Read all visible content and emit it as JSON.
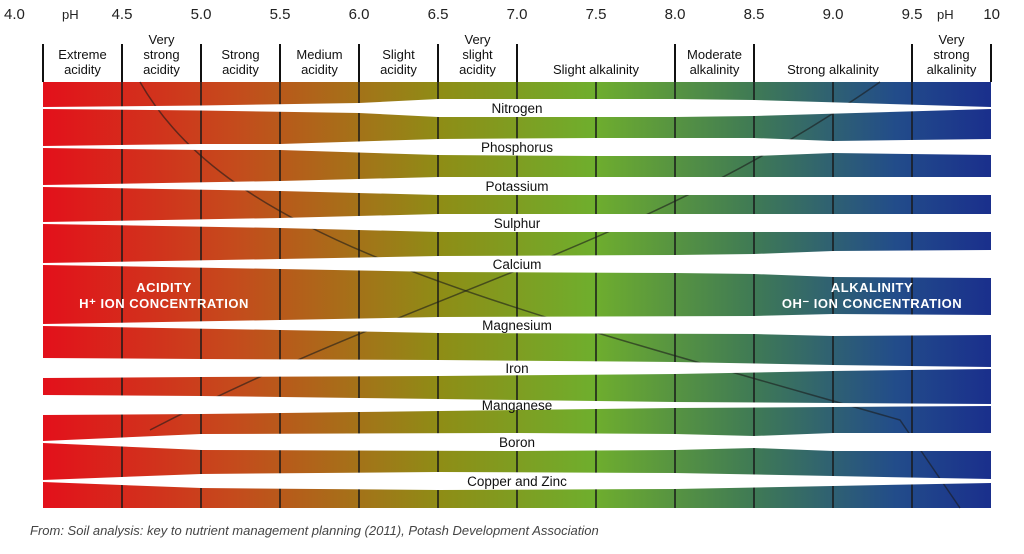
{
  "ph_axis": {
    "unit_left": "pH",
    "unit_right": "pH",
    "ticks": [
      {
        "label": "4.0",
        "value": 4.0
      },
      {
        "label": "4.5",
        "value": 4.5
      },
      {
        "label": "5.0",
        "value": 5.0
      },
      {
        "label": "5.5",
        "value": 5.5
      },
      {
        "label": "6.0",
        "value": 6.0
      },
      {
        "label": "6.5",
        "value": 6.5
      },
      {
        "label": "7.0",
        "value": 7.0
      },
      {
        "label": "7.5",
        "value": 7.5
      },
      {
        "label": "8.0",
        "value": 8.0
      },
      {
        "label": "8.5",
        "value": 8.5
      },
      {
        "label": "9.0",
        "value": 9.0
      },
      {
        "label": "9.5",
        "value": 9.5
      },
      {
        "label": "10",
        "value": 10.0
      }
    ]
  },
  "ranges": [
    {
      "lines": [
        "Extreme",
        "acidity"
      ],
      "from": 4.0,
      "to": 4.5
    },
    {
      "lines": [
        "Very",
        "strong",
        "acidity"
      ],
      "from": 4.5,
      "to": 5.0
    },
    {
      "lines": [
        "Strong",
        "acidity"
      ],
      "from": 5.0,
      "to": 5.5
    },
    {
      "lines": [
        "Medium",
        "acidity"
      ],
      "from": 5.5,
      "to": 6.0
    },
    {
      "lines": [
        "Slight",
        "acidity"
      ],
      "from": 6.0,
      "to": 6.5
    },
    {
      "lines": [
        "Very",
        "slight",
        "acidity"
      ],
      "from": 6.5,
      "to": 7.0
    },
    {
      "lines": [
        "Slight alkalinity"
      ],
      "from": 7.0,
      "to": 8.0
    },
    {
      "lines": [
        "Moderate",
        "alkalinity"
      ],
      "from": 8.0,
      "to": 8.5
    },
    {
      "lines": [
        "Strong alkalinity"
      ],
      "from": 8.5,
      "to": 9.5
    },
    {
      "lines": [
        "Very",
        "strong",
        "alkalinity"
      ],
      "from": 9.5,
      "to": 10.0
    }
  ],
  "nutrients": [
    {
      "name": "Nitrogen"
    },
    {
      "name": "Phosphorus"
    },
    {
      "name": "Potassium"
    },
    {
      "name": "Sulphur"
    },
    {
      "name": "Calcium"
    },
    {
      "name": "Magnesium"
    },
    {
      "name": "Iron"
    },
    {
      "name": "Manganese"
    },
    {
      "name": "Boron"
    },
    {
      "name": "Copper and Zinc"
    }
  ],
  "acidity_label": {
    "line1": "ACIDITY",
    "line2": "H⁺ ION CONCENTRATION"
  },
  "alkalinity_label": {
    "line1": "ALKALINITY",
    "line2": "OH⁻ ION CONCENTRATION"
  },
  "gradient_colors": [
    "#e3101b",
    "#c54a1c",
    "#8e8d16",
    "#6fae2d",
    "#3f7a55",
    "#224c8a",
    "#1a2f8c"
  ],
  "source_text": "From: Soil analysis: key to nutrient management planning (2011), Potash Development Association"
}
